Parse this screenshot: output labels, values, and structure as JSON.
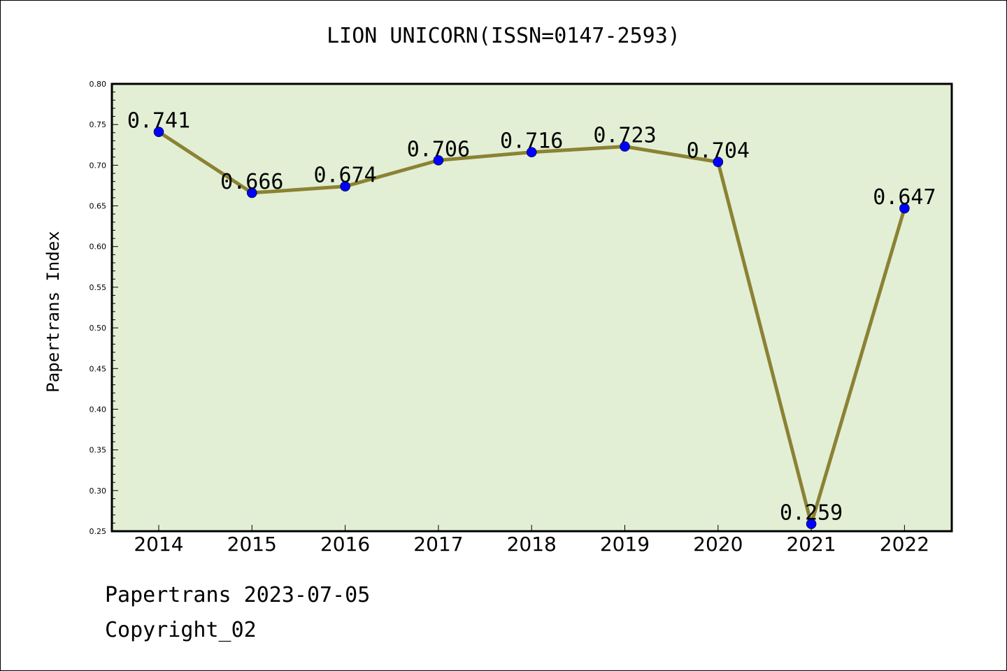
{
  "chart_data": {
    "type": "line",
    "title": "LION UNICORN(ISSN=0147-2593)",
    "xlabel": "",
    "ylabel": "Papertrans Index",
    "categories": [
      "2014",
      "2015",
      "2016",
      "2017",
      "2018",
      "2019",
      "2020",
      "2021",
      "2022"
    ],
    "series": [
      {
        "values": [
          0.741,
          0.666,
          0.674,
          0.706,
          0.716,
          0.723,
          0.704,
          0.259,
          0.647
        ]
      }
    ],
    "data_labels": [
      "0.741",
      "0.666",
      "0.674",
      "0.706",
      "0.716",
      "0.723",
      "0.704",
      "0.259",
      "0.647"
    ],
    "ylim": [
      0.25,
      0.8
    ],
    "yticks": [
      "0.25",
      "0.30",
      "0.35",
      "0.40",
      "0.45",
      "0.50",
      "0.55",
      "0.60",
      "0.65",
      "0.70",
      "0.75",
      "0.80"
    ],
    "grid": false,
    "colors": {
      "plot_bg": "#e2efd5",
      "line": "#8b8233",
      "marker": "#0000ff"
    }
  },
  "footer": {
    "line1": "Papertrans 2023-07-05",
    "line2": "Copyright_02"
  }
}
